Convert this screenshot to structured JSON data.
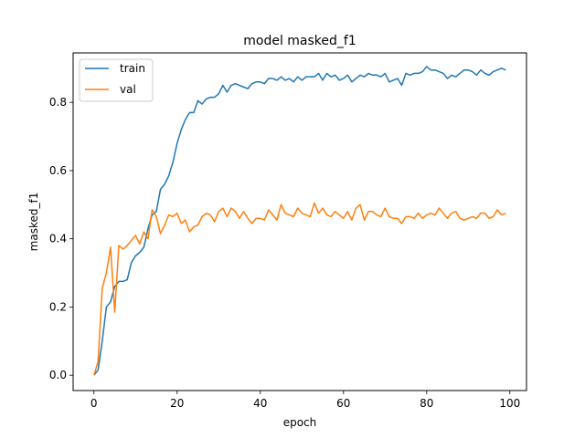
{
  "chart_data": {
    "type": "line",
    "title": "model masked_f1",
    "xlabel": "epoch",
    "ylabel": "masked_f1",
    "xlim": [
      -5,
      104
    ],
    "ylim": [
      -0.045,
      0.945
    ],
    "xticks": [
      0,
      20,
      40,
      60,
      80,
      100
    ],
    "yticks": [
      0.0,
      0.2,
      0.4,
      0.6,
      0.8
    ],
    "ytick_labels": [
      "0.0",
      "0.2",
      "0.4",
      "0.6",
      "0.8"
    ],
    "legend_position": "upper-left",
    "grid": false,
    "series": [
      {
        "name": "train",
        "color": "#1f77b4",
        "x": [
          0,
          1,
          2,
          3,
          4,
          5,
          6,
          7,
          8,
          9,
          10,
          11,
          12,
          13,
          14,
          15,
          16,
          17,
          18,
          19,
          20,
          21,
          22,
          23,
          24,
          25,
          26,
          27,
          28,
          29,
          30,
          31,
          32,
          33,
          34,
          35,
          36,
          37,
          38,
          39,
          40,
          41,
          42,
          43,
          44,
          45,
          46,
          47,
          48,
          49,
          50,
          51,
          52,
          53,
          54,
          55,
          56,
          57,
          58,
          59,
          60,
          61,
          62,
          63,
          64,
          65,
          66,
          67,
          68,
          69,
          70,
          71,
          72,
          73,
          74,
          75,
          76,
          77,
          78,
          79,
          80,
          81,
          82,
          83,
          84,
          85,
          86,
          87,
          88,
          89,
          90,
          91,
          92,
          93,
          94,
          95,
          96,
          97,
          98,
          99
        ],
        "values": [
          0.0,
          0.015,
          0.1,
          0.2,
          0.215,
          0.26,
          0.275,
          0.275,
          0.28,
          0.33,
          0.35,
          0.36,
          0.375,
          0.43,
          0.47,
          0.48,
          0.545,
          0.56,
          0.585,
          0.625,
          0.68,
          0.72,
          0.75,
          0.77,
          0.77,
          0.805,
          0.795,
          0.81,
          0.815,
          0.815,
          0.825,
          0.85,
          0.83,
          0.85,
          0.855,
          0.85,
          0.845,
          0.84,
          0.855,
          0.86,
          0.86,
          0.855,
          0.87,
          0.87,
          0.865,
          0.875,
          0.865,
          0.87,
          0.86,
          0.875,
          0.865,
          0.875,
          0.875,
          0.875,
          0.885,
          0.865,
          0.885,
          0.875,
          0.88,
          0.865,
          0.87,
          0.88,
          0.86,
          0.87,
          0.88,
          0.875,
          0.885,
          0.88,
          0.88,
          0.875,
          0.885,
          0.86,
          0.865,
          0.87,
          0.85,
          0.885,
          0.88,
          0.885,
          0.885,
          0.89,
          0.905,
          0.895,
          0.895,
          0.89,
          0.885,
          0.87,
          0.88,
          0.875,
          0.885,
          0.895,
          0.895,
          0.89,
          0.88,
          0.895,
          0.885,
          0.88,
          0.89,
          0.895,
          0.9,
          0.895
        ]
      },
      {
        "name": "val",
        "color": "#ff7f0e",
        "x": [
          0,
          1,
          2,
          3,
          4,
          5,
          6,
          7,
          8,
          9,
          10,
          11,
          12,
          13,
          14,
          15,
          16,
          17,
          18,
          19,
          20,
          21,
          22,
          23,
          24,
          25,
          26,
          27,
          28,
          29,
          30,
          31,
          32,
          33,
          34,
          35,
          36,
          37,
          38,
          39,
          40,
          41,
          42,
          43,
          44,
          45,
          46,
          47,
          48,
          49,
          50,
          51,
          52,
          53,
          54,
          55,
          56,
          57,
          58,
          59,
          60,
          61,
          62,
          63,
          64,
          65,
          66,
          67,
          68,
          69,
          70,
          71,
          72,
          73,
          74,
          75,
          76,
          77,
          78,
          79,
          80,
          81,
          82,
          83,
          84,
          85,
          86,
          87,
          88,
          89,
          90,
          91,
          92,
          93,
          94,
          95,
          96,
          97,
          98,
          99
        ],
        "values": [
          0.0,
          0.04,
          0.255,
          0.3,
          0.375,
          0.185,
          0.38,
          0.37,
          0.38,
          0.395,
          0.41,
          0.385,
          0.42,
          0.4,
          0.485,
          0.465,
          0.415,
          0.44,
          0.47,
          0.465,
          0.475,
          0.445,
          0.455,
          0.42,
          0.435,
          0.44,
          0.465,
          0.475,
          0.47,
          0.45,
          0.48,
          0.49,
          0.465,
          0.49,
          0.48,
          0.46,
          0.48,
          0.46,
          0.445,
          0.46,
          0.46,
          0.455,
          0.485,
          0.47,
          0.455,
          0.5,
          0.475,
          0.47,
          0.465,
          0.49,
          0.475,
          0.47,
          0.465,
          0.505,
          0.475,
          0.49,
          0.47,
          0.465,
          0.48,
          0.47,
          0.46,
          0.48,
          0.455,
          0.49,
          0.5,
          0.455,
          0.48,
          0.48,
          0.47,
          0.465,
          0.49,
          0.465,
          0.46,
          0.46,
          0.445,
          0.465,
          0.465,
          0.46,
          0.475,
          0.46,
          0.47,
          0.475,
          0.47,
          0.49,
          0.475,
          0.46,
          0.475,
          0.48,
          0.46,
          0.455,
          0.46,
          0.465,
          0.46,
          0.475,
          0.475,
          0.46,
          0.465,
          0.485,
          0.47,
          0.475
        ]
      }
    ]
  }
}
